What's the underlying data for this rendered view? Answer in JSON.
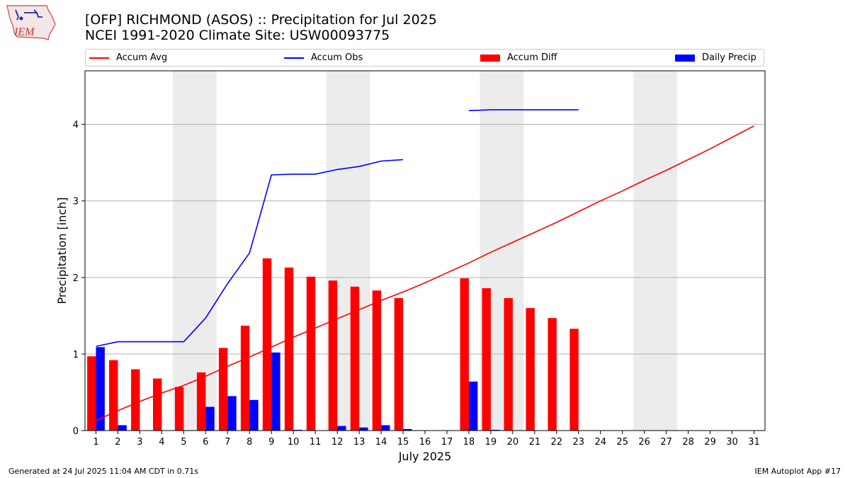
{
  "header": {
    "title": "[OFP] RICHMOND (ASOS) :: Precipitation for Jul 2025",
    "subtitle": "NCEI 1991-2020 Climate Site: USW00093775",
    "logo_text": "IEM"
  },
  "footer": {
    "generated": "Generated at 24 Jul 2025 11:04 AM CDT in 0.71s",
    "app": "IEM Autoplot App #17"
  },
  "colors": {
    "accum_avg": "#ff0000",
    "accum_obs": "#0000ff",
    "accum_diff": "#ff0000",
    "daily_precip": "#0000ff",
    "weekend_shade": "#ececec",
    "grid": "#b0b0b0"
  },
  "chart_data": {
    "type": "bar",
    "xlabel": "July 2025",
    "ylabel": "Precipitation [inch]",
    "xlim": [
      0.5,
      31.5
    ],
    "ylim": [
      0,
      4.7
    ],
    "yticks": [
      0,
      1,
      2,
      3,
      4
    ],
    "categories": [
      "1",
      "2",
      "3",
      "4",
      "5",
      "6",
      "7",
      "8",
      "9",
      "10",
      "11",
      "12",
      "13",
      "14",
      "15",
      "16",
      "17",
      "18",
      "19",
      "20",
      "21",
      "22",
      "23",
      "24",
      "25",
      "26",
      "27",
      "28",
      "29",
      "30",
      "31"
    ],
    "grid": "horizontal",
    "legend_position": "top",
    "weekend_shading": [
      [
        5,
        6
      ],
      [
        12,
        13
      ],
      [
        19,
        20
      ],
      [
        26,
        27
      ]
    ],
    "legend": [
      "Accum Avg",
      "Accum Obs",
      "Accum Diff",
      "Daily Precip"
    ],
    "series": [
      {
        "name": "Accum Avg",
        "kind": "line",
        "values": [
          0.13,
          0.26,
          0.38,
          0.49,
          0.59,
          0.71,
          0.84,
          0.96,
          1.09,
          1.22,
          1.34,
          1.46,
          1.58,
          1.7,
          1.81,
          1.93,
          2.06,
          2.19,
          2.33,
          2.46,
          2.59,
          2.72,
          2.86,
          3.0,
          3.13,
          3.27,
          3.4,
          3.54,
          3.68,
          3.83,
          3.98
        ]
      },
      {
        "name": "Accum Obs",
        "kind": "line",
        "values": [
          1.1,
          1.16,
          1.16,
          1.16,
          1.16,
          1.47,
          1.92,
          2.32,
          3.34,
          3.35,
          3.35,
          3.41,
          3.45,
          3.52,
          3.54,
          null,
          null,
          4.18,
          4.19,
          4.19,
          4.19,
          4.19,
          4.19,
          null,
          null,
          null,
          null,
          null,
          null,
          null,
          null
        ]
      },
      {
        "name": "Accum Diff",
        "kind": "bar",
        "values": [
          0.97,
          0.92,
          0.8,
          0.68,
          0.57,
          0.76,
          1.08,
          1.37,
          2.25,
          2.13,
          2.01,
          1.96,
          1.88,
          1.83,
          1.73,
          null,
          null,
          1.99,
          1.86,
          1.73,
          1.6,
          1.47,
          1.33,
          null,
          null,
          null,
          null,
          null,
          null,
          null,
          null
        ]
      },
      {
        "name": "Daily Precip",
        "kind": "bar",
        "values": [
          1.09,
          0.07,
          0,
          0,
          0,
          0.31,
          0.45,
          0.4,
          1.02,
          0.01,
          0,
          0.06,
          0.04,
          0.07,
          0.02,
          null,
          null,
          0.64,
          0.01,
          0,
          0,
          0,
          0,
          null,
          null,
          null,
          null,
          null,
          null,
          null,
          null
        ]
      }
    ]
  }
}
